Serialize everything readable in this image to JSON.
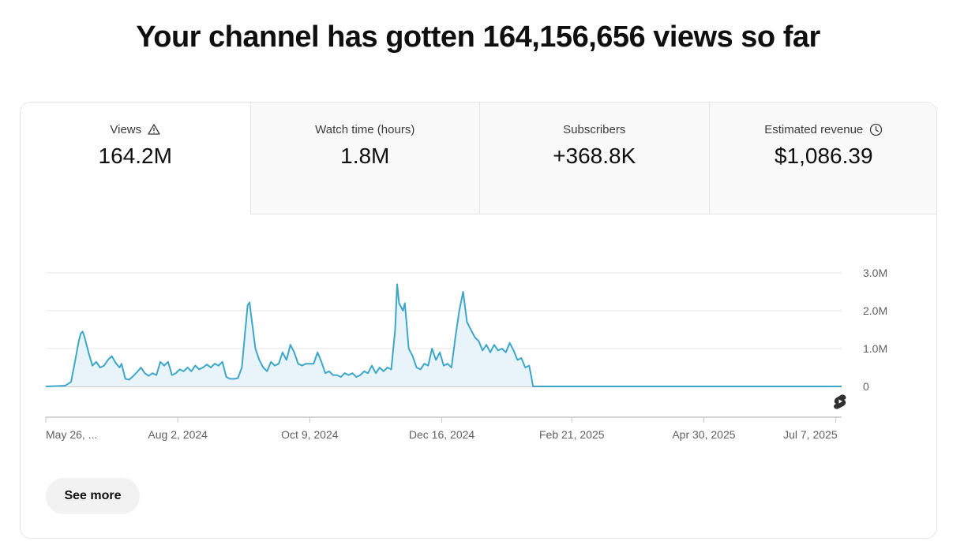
{
  "headline": "Your channel has gotten 164,156,656 views so far",
  "tabs": [
    {
      "label": "Views",
      "value": "164.2M",
      "icon": "warning-icon",
      "active": true
    },
    {
      "label": "Watch time (hours)",
      "value": "1.8M",
      "icon": "",
      "active": false
    },
    {
      "label": "Subscribers",
      "value": "+368.8K",
      "icon": "",
      "active": false
    },
    {
      "label": "Estimated revenue",
      "value": "$1,086.39",
      "icon": "clock-icon",
      "active": false
    }
  ],
  "see_more_label": "See more",
  "colors": {
    "line": "#3ea6c9",
    "fill": "#e8f4f9",
    "grid": "#e5e5e5",
    "axis": "#c6c6c6",
    "text": "#606060"
  },
  "chart_data": {
    "type": "area",
    "x_start": "2024-05-26",
    "x_end": "2025-07-10",
    "y_ticks": [
      {
        "value": 0,
        "label": "0"
      },
      {
        "value": 1000000,
        "label": "1.0M"
      },
      {
        "value": 2000000,
        "label": "2.0M"
      },
      {
        "value": 3000000,
        "label": "3.0M"
      }
    ],
    "ylim": [
      0,
      3000000
    ],
    "x_ticks": [
      {
        "date": "2024-05-26",
        "label": "May 26, ..."
      },
      {
        "date": "2024-08-02",
        "label": "Aug 2, 2024"
      },
      {
        "date": "2024-10-09",
        "label": "Oct 9, 2024"
      },
      {
        "date": "2024-12-16",
        "label": "Dec 16, 2024"
      },
      {
        "date": "2025-02-21",
        "label": "Feb 21, 2025"
      },
      {
        "date": "2025-04-30",
        "label": "Apr 30, 2025"
      },
      {
        "date": "2025-07-07",
        "label": "Jul 7, 2025"
      }
    ],
    "series": [
      {
        "points": [
          [
            "2024-05-26",
            0
          ],
          [
            "2024-06-01",
            10000
          ],
          [
            "2024-06-05",
            20000
          ],
          [
            "2024-06-08",
            120000
          ],
          [
            "2024-06-10",
            650000
          ],
          [
            "2024-06-12",
            1200000
          ],
          [
            "2024-06-13",
            1400000
          ],
          [
            "2024-06-14",
            1450000
          ],
          [
            "2024-06-15",
            1300000
          ],
          [
            "2024-06-17",
            900000
          ],
          [
            "2024-06-19",
            550000
          ],
          [
            "2024-06-21",
            650000
          ],
          [
            "2024-06-23",
            500000
          ],
          [
            "2024-06-25",
            550000
          ],
          [
            "2024-06-27",
            700000
          ],
          [
            "2024-06-29",
            800000
          ],
          [
            "2024-07-01",
            620000
          ],
          [
            "2024-07-03",
            500000
          ],
          [
            "2024-07-04",
            600000
          ],
          [
            "2024-07-06",
            200000
          ],
          [
            "2024-07-08",
            180000
          ],
          [
            "2024-07-10",
            270000
          ],
          [
            "2024-07-12",
            380000
          ],
          [
            "2024-07-14",
            500000
          ],
          [
            "2024-07-16",
            350000
          ],
          [
            "2024-07-18",
            280000
          ],
          [
            "2024-07-20",
            350000
          ],
          [
            "2024-07-22",
            300000
          ],
          [
            "2024-07-24",
            650000
          ],
          [
            "2024-07-26",
            550000
          ],
          [
            "2024-07-28",
            650000
          ],
          [
            "2024-07-30",
            300000
          ],
          [
            "2024-08-01",
            350000
          ],
          [
            "2024-08-03",
            450000
          ],
          [
            "2024-08-05",
            400000
          ],
          [
            "2024-08-07",
            500000
          ],
          [
            "2024-08-09",
            400000
          ],
          [
            "2024-08-11",
            550000
          ],
          [
            "2024-08-13",
            450000
          ],
          [
            "2024-08-15",
            500000
          ],
          [
            "2024-08-17",
            580000
          ],
          [
            "2024-08-19",
            500000
          ],
          [
            "2024-08-21",
            600000
          ],
          [
            "2024-08-23",
            550000
          ],
          [
            "2024-08-25",
            650000
          ],
          [
            "2024-08-27",
            250000
          ],
          [
            "2024-08-29",
            200000
          ],
          [
            "2024-08-31",
            200000
          ],
          [
            "2024-09-02",
            220000
          ],
          [
            "2024-09-04",
            500000
          ],
          [
            "2024-09-06",
            1600000
          ],
          [
            "2024-09-07",
            2150000
          ],
          [
            "2024-09-08",
            2220000
          ],
          [
            "2024-09-09",
            1800000
          ],
          [
            "2024-09-11",
            1000000
          ],
          [
            "2024-09-13",
            700000
          ],
          [
            "2024-09-15",
            500000
          ],
          [
            "2024-09-17",
            400000
          ],
          [
            "2024-09-19",
            650000
          ],
          [
            "2024-09-21",
            550000
          ],
          [
            "2024-09-23",
            600000
          ],
          [
            "2024-09-25",
            900000
          ],
          [
            "2024-09-27",
            700000
          ],
          [
            "2024-09-29",
            1100000
          ],
          [
            "2024-10-01",
            900000
          ],
          [
            "2024-10-03",
            600000
          ],
          [
            "2024-10-05",
            550000
          ],
          [
            "2024-10-07",
            600000
          ],
          [
            "2024-10-09",
            600000
          ],
          [
            "2024-10-11",
            600000
          ],
          [
            "2024-10-13",
            900000
          ],
          [
            "2024-10-15",
            650000
          ],
          [
            "2024-10-17",
            350000
          ],
          [
            "2024-10-19",
            400000
          ],
          [
            "2024-10-21",
            300000
          ],
          [
            "2024-10-23",
            300000
          ],
          [
            "2024-10-25",
            250000
          ],
          [
            "2024-10-27",
            350000
          ],
          [
            "2024-10-29",
            300000
          ],
          [
            "2024-10-31",
            350000
          ],
          [
            "2024-11-02",
            250000
          ],
          [
            "2024-11-04",
            300000
          ],
          [
            "2024-11-06",
            400000
          ],
          [
            "2024-11-08",
            350000
          ],
          [
            "2024-11-10",
            550000
          ],
          [
            "2024-11-12",
            350000
          ],
          [
            "2024-11-14",
            500000
          ],
          [
            "2024-11-16",
            400000
          ],
          [
            "2024-11-18",
            500000
          ],
          [
            "2024-11-20",
            450000
          ],
          [
            "2024-11-22",
            1500000
          ],
          [
            "2024-11-23",
            2700000
          ],
          [
            "2024-11-24",
            2200000
          ],
          [
            "2024-11-26",
            2000000
          ],
          [
            "2024-11-27",
            2200000
          ],
          [
            "2024-11-29",
            1000000
          ],
          [
            "2024-12-01",
            800000
          ],
          [
            "2024-12-03",
            500000
          ],
          [
            "2024-12-05",
            450000
          ],
          [
            "2024-12-07",
            600000
          ],
          [
            "2024-12-09",
            550000
          ],
          [
            "2024-12-11",
            1000000
          ],
          [
            "2024-12-13",
            700000
          ],
          [
            "2024-12-15",
            900000
          ],
          [
            "2024-12-17",
            550000
          ],
          [
            "2024-12-19",
            600000
          ],
          [
            "2024-12-21",
            500000
          ],
          [
            "2024-12-23",
            1300000
          ],
          [
            "2024-12-25",
            2000000
          ],
          [
            "2024-12-27",
            2500000
          ],
          [
            "2024-12-29",
            1700000
          ],
          [
            "2024-12-31",
            1500000
          ],
          [
            "2025-01-02",
            1300000
          ],
          [
            "2025-01-04",
            1200000
          ],
          [
            "2025-01-06",
            950000
          ],
          [
            "2025-01-08",
            1100000
          ],
          [
            "2025-01-10",
            900000
          ],
          [
            "2025-01-12",
            1100000
          ],
          [
            "2025-01-14",
            950000
          ],
          [
            "2025-01-16",
            1000000
          ],
          [
            "2025-01-18",
            900000
          ],
          [
            "2025-01-20",
            1150000
          ],
          [
            "2025-01-22",
            950000
          ],
          [
            "2025-01-24",
            700000
          ],
          [
            "2025-01-26",
            750000
          ],
          [
            "2025-01-28",
            500000
          ],
          [
            "2025-01-30",
            550000
          ],
          [
            "2025-01-31",
            300000
          ],
          [
            "2025-02-01",
            0
          ],
          [
            "2025-07-10",
            0
          ]
        ]
      }
    ]
  }
}
